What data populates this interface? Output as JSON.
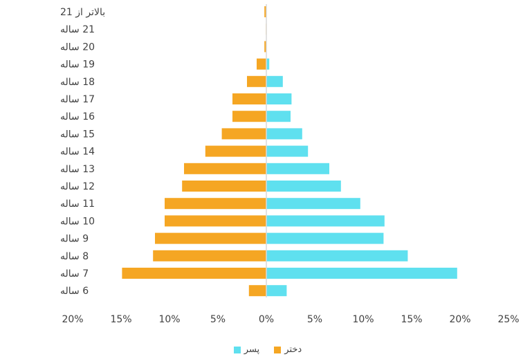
{
  "chart_data": {
    "type": "bar",
    "orientation": "horizontal",
    "categories": [
      "6 ساله",
      "7 ساله",
      "8 ساله",
      "9 ساله",
      "10 ساله",
      "11 ساله",
      "12 ساله",
      "13 ساله",
      "14 ساله",
      "15 ساله",
      "16 ساله",
      "17 ساله",
      "18 ساله",
      "19 ساله",
      "20 ساله",
      "21 ساله",
      "بالاتر از 21"
    ],
    "series": [
      {
        "name": "دختر",
        "color": "#F5A623",
        "side": "left",
        "values": [
          1.8,
          14.9,
          11.7,
          11.5,
          10.5,
          10.5,
          8.7,
          8.5,
          6.3,
          4.6,
          3.5,
          3.5,
          2.0,
          1.0,
          0.2,
          0.05,
          0.2
        ]
      },
      {
        "name": "پسر",
        "color": "#5FE0EF",
        "side": "right",
        "values": [
          2.1,
          19.7,
          14.6,
          12.1,
          12.2,
          9.7,
          7.7,
          6.5,
          4.3,
          3.7,
          2.5,
          2.6,
          1.7,
          0.3,
          0.0,
          0.0,
          0.0
        ]
      }
    ],
    "xlim": [
      -20,
      25
    ],
    "ticks": [
      "20%",
      "15%",
      "10%",
      "5%",
      "0%",
      "5%",
      "10%",
      "15%",
      "20%",
      "25%"
    ],
    "legend_position": "bottom",
    "grid": false
  }
}
